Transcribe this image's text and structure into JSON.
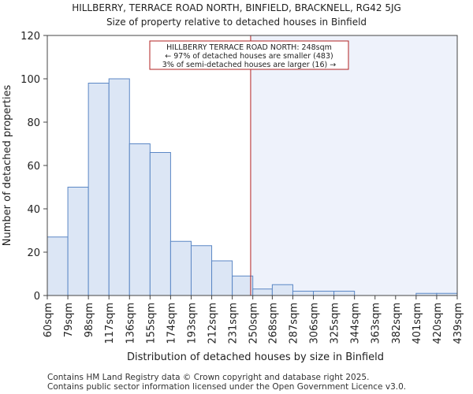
{
  "chart_data": {
    "type": "bar",
    "title_line1": "HILLBERRY, TERRACE ROAD NORTH, BINFIELD, BRACKNELL, RG42 5JG",
    "title_line2": "Size of property relative to detached houses in Binfield",
    "xlabel": "Distribution of detached houses by size in Binfield",
    "ylabel": "Number of detached properties",
    "ylim": [
      0,
      120
    ],
    "yticks": [
      0,
      20,
      40,
      60,
      80,
      100,
      120
    ],
    "x_range": [
      60,
      439
    ],
    "bin_edges": [
      60,
      79,
      98,
      117,
      136,
      155,
      174,
      193,
      212,
      231,
      250,
      268,
      287,
      306,
      325,
      344,
      363,
      382,
      401,
      420,
      439
    ],
    "tick_labels": [
      "60sqm",
      "79sqm",
      "98sqm",
      "117sqm",
      "136sqm",
      "155sqm",
      "174sqm",
      "193sqm",
      "212sqm",
      "231sqm",
      "250sqm",
      "268sqm",
      "287sqm",
      "306sqm",
      "325sqm",
      "344sqm",
      "363sqm",
      "382sqm",
      "401sqm",
      "420sqm",
      "439sqm"
    ],
    "values": [
      27,
      50,
      98,
      100,
      70,
      66,
      25,
      23,
      16,
      9,
      3,
      5,
      2,
      2,
      2,
      0,
      0,
      0,
      1,
      1
    ],
    "property_size": 248,
    "annotation": {
      "line1": "HILLBERRY TERRACE ROAD NORTH: 248sqm",
      "line2": "← 97% of detached houses are smaller (483)",
      "line3": "3% of semi-detached houses are larger (16) →"
    },
    "colors": {
      "bar_fill": "#dce6f5",
      "bar_stroke": "#5b87c5",
      "marker": "#b22222",
      "shade": "#eef2fb",
      "annotation_border": "#b22222"
    }
  },
  "footer": {
    "line1": "Contains HM Land Registry data © Crown copyright and database right 2025.",
    "line2": "Contains public sector information licensed under the Open Government Licence v3.0."
  }
}
